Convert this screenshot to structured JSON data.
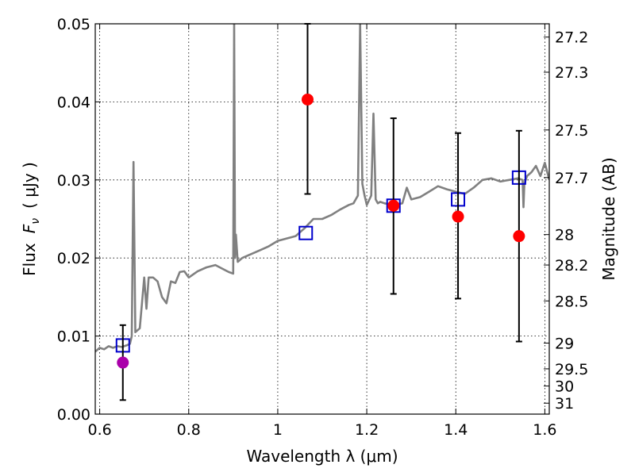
{
  "chart_data": {
    "type": "scatter",
    "xlabel": "Wavelength  λ (μm)",
    "ylabel_prefix": "Flux",
    "ylabel_symbol": "F",
    "ylabel_subscript": "ν",
    "ylabel_unit": "( μJy )",
    "y2label": "Magnitude (AB)",
    "xlim": [
      0.59,
      1.61
    ],
    "ylim": [
      0.0,
      0.05
    ],
    "x_ticks": [
      {
        "value": 0.6,
        "label": "0.6"
      },
      {
        "value": 0.8,
        "label": "0.8"
      },
      {
        "value": 1.0,
        "label": "1"
      },
      {
        "value": 1.2,
        "label": "1.2"
      },
      {
        "value": 1.4,
        "label": "1.4"
      },
      {
        "value": 1.6,
        "label": "1.6"
      }
    ],
    "y_ticks": [
      {
        "value": 0.0,
        "label": "0.00"
      },
      {
        "value": 0.01,
        "label": "0.01"
      },
      {
        "value": 0.02,
        "label": "0.02"
      },
      {
        "value": 0.03,
        "label": "0.03"
      },
      {
        "value": 0.04,
        "label": "0.04"
      },
      {
        "value": 0.05,
        "label": "0.05"
      }
    ],
    "y2_ticks": [
      {
        "label": "27.2",
        "flux": 0.0483
      },
      {
        "label": "27.3",
        "flux": 0.0438
      },
      {
        "label": "27.5",
        "flux": 0.0364
      },
      {
        "label": "27.7",
        "flux": 0.0303
      },
      {
        "label": "28",
        "flux": 0.023
      },
      {
        "label": "28.2",
        "flux": 0.0191
      },
      {
        "label": "28.5",
        "flux": 0.0145
      },
      {
        "label": "29",
        "flux": 0.0091
      },
      {
        "label": "29.5",
        "flux": 0.0058
      },
      {
        "label": "30",
        "flux": 0.0036
      },
      {
        "label": "31",
        "flux": 0.0014
      }
    ],
    "grid": true,
    "series": [
      {
        "kind": "line",
        "color": "#808080",
        "x": [
          0.59,
          0.6,
          0.61,
          0.62,
          0.63,
          0.64,
          0.65,
          0.66,
          0.668,
          0.672,
          0.676,
          0.68,
          0.69,
          0.7,
          0.705,
          0.71,
          0.72,
          0.73,
          0.74,
          0.75,
          0.76,
          0.77,
          0.78,
          0.79,
          0.8,
          0.82,
          0.84,
          0.86,
          0.88,
          0.89,
          0.9,
          0.902,
          0.904,
          0.906,
          0.91,
          0.92,
          0.94,
          0.96,
          0.98,
          1.0,
          1.02,
          1.04,
          1.06,
          1.08,
          1.1,
          1.12,
          1.14,
          1.16,
          1.17,
          1.18,
          1.185,
          1.19,
          1.195,
          1.2,
          1.21,
          1.215,
          1.22,
          1.225,
          1.23,
          1.24,
          1.26,
          1.28,
          1.29,
          1.3,
          1.32,
          1.34,
          1.36,
          1.38,
          1.4,
          1.42,
          1.44,
          1.46,
          1.48,
          1.5,
          1.52,
          1.54,
          1.55,
          1.552,
          1.554,
          1.56,
          1.57,
          1.58,
          1.59,
          1.6,
          1.61
        ],
        "y": [
          0.008,
          0.0085,
          0.0083,
          0.0087,
          0.0085,
          0.0087,
          0.0086,
          0.0088,
          0.009,
          0.01,
          0.0323,
          0.0105,
          0.011,
          0.0175,
          0.0135,
          0.0175,
          0.0175,
          0.017,
          0.015,
          0.0142,
          0.017,
          0.0168,
          0.0182,
          0.0183,
          0.0175,
          0.0183,
          0.0188,
          0.0191,
          0.0185,
          0.0182,
          0.018,
          0.05,
          0.02,
          0.023,
          0.0195,
          0.02,
          0.0205,
          0.021,
          0.0215,
          0.0222,
          0.0225,
          0.0228,
          0.0238,
          0.025,
          0.025,
          0.0255,
          0.0262,
          0.0268,
          0.027,
          0.028,
          0.05,
          0.0295,
          0.028,
          0.0268,
          0.028,
          0.0385,
          0.0275,
          0.027,
          0.0272,
          0.027,
          0.0268,
          0.027,
          0.029,
          0.0275,
          0.0278,
          0.0285,
          0.0292,
          0.0288,
          0.0285,
          0.0282,
          0.029,
          0.03,
          0.0302,
          0.0298,
          0.03,
          0.0302,
          0.03,
          0.0265,
          0.0295,
          0.0305,
          0.031,
          0.0318,
          0.0305,
          0.0322,
          0.03
        ]
      },
      {
        "kind": "markers",
        "marker": "square-open",
        "color": "#0000cc",
        "x": [
          0.652,
          1.063,
          1.26,
          1.405,
          1.542
        ],
        "y": [
          0.0088,
          0.0232,
          0.0267,
          0.0275,
          0.0303
        ]
      },
      {
        "kind": "errorbar",
        "marker": "circle",
        "x": [
          0.652,
          1.067,
          1.26,
          1.405,
          1.542
        ],
        "y": [
          0.0066,
          0.0403,
          0.0267,
          0.0253,
          0.0228
        ],
        "yerr_low": [
          0.0048,
          0.0121,
          0.0113,
          0.0105,
          0.0135
        ],
        "yerr_high": [
          0.0048,
          0.0097,
          0.0112,
          0.0107,
          0.0135
        ],
        "colors": [
          "#aa00aa",
          "#ff0000",
          "#ff0000",
          "#ff0000",
          "#ff0000"
        ]
      }
    ]
  }
}
